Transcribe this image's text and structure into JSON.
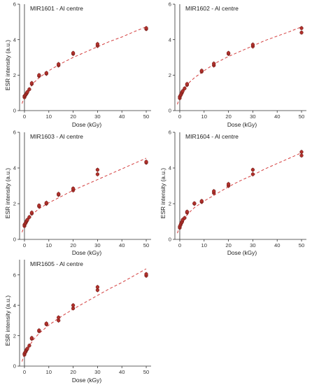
{
  "chart_data": [
    {
      "type": "scatter",
      "title": "MIR1601 - Al centre",
      "xlabel": "Dose (kGy)",
      "ylabel": "ESR intensity (a.u.)",
      "xlim": [
        -2,
        52
      ],
      "ylim": [
        0,
        6
      ],
      "xticks": [
        0,
        10,
        20,
        30,
        40,
        50
      ],
      "yticks": [
        0,
        2,
        4,
        6
      ],
      "grid": false,
      "series": [
        {
          "marker_color": "#b0302b",
          "x": [
            0,
            0,
            0.3,
            0.5,
            0.8,
            1,
            1.2,
            2,
            3,
            3,
            6,
            6,
            9,
            9,
            14,
            14,
            20,
            20,
            30,
            30,
            50,
            50
          ],
          "y": [
            0.75,
            0.82,
            0.85,
            0.9,
            0.95,
            1.0,
            1.05,
            1.2,
            1.5,
            1.55,
            1.95,
            2.0,
            2.08,
            2.12,
            2.55,
            2.62,
            3.2,
            3.25,
            3.65,
            3.75,
            4.6,
            4.65
          ]
        }
      ],
      "fit": {
        "color": "#d43f3f",
        "style": "dashed",
        "x": [
          -1,
          0,
          1,
          2,
          4,
          6,
          10,
          15,
          20,
          25,
          30,
          35,
          40,
          45,
          50
        ],
        "y": [
          0.4,
          0.78,
          1.05,
          1.25,
          1.6,
          1.85,
          2.25,
          2.65,
          3.0,
          3.3,
          3.6,
          3.9,
          4.15,
          4.45,
          4.72
        ]
      }
    },
    {
      "type": "scatter",
      "title": "MIR1602 - Al centre",
      "xlabel": "Dose (kGy)",
      "ylabel": "",
      "xlim": [
        -2,
        52
      ],
      "ylim": [
        0,
        6
      ],
      "xticks": [
        0,
        10,
        20,
        30,
        40,
        50
      ],
      "yticks": [
        0,
        2,
        4,
        6
      ],
      "grid": false,
      "series": [
        {
          "marker_color": "#b0302b",
          "x": [
            0,
            0,
            0.3,
            0.5,
            0.8,
            1,
            1.2,
            2,
            3,
            3,
            9,
            9,
            14,
            14,
            20,
            20,
            30,
            30,
            50,
            50
          ],
          "y": [
            0.7,
            0.78,
            0.85,
            0.9,
            0.98,
            1.05,
            1.1,
            1.25,
            1.45,
            1.5,
            2.2,
            2.25,
            2.55,
            2.65,
            3.2,
            3.25,
            3.62,
            3.72,
            4.4,
            4.65
          ]
        }
      ],
      "fit": {
        "color": "#d43f3f",
        "style": "dashed",
        "x": [
          -1,
          0,
          1,
          2,
          4,
          6,
          10,
          15,
          20,
          25,
          30,
          35,
          40,
          45,
          50
        ],
        "y": [
          0.35,
          0.75,
          1.05,
          1.25,
          1.6,
          1.85,
          2.25,
          2.7,
          3.05,
          3.35,
          3.65,
          3.95,
          4.2,
          4.45,
          4.72
        ]
      }
    },
    {
      "type": "scatter",
      "title": "MIR1603 - Al centre",
      "xlabel": "Dose (kGy)",
      "ylabel": "ESR intensity (a.u.)",
      "xlim": [
        -2,
        52
      ],
      "ylim": [
        0,
        6
      ],
      "xticks": [
        0,
        10,
        20,
        30,
        40,
        50
      ],
      "yticks": [
        0,
        2,
        4,
        6
      ],
      "grid": false,
      "series": [
        {
          "marker_color": "#b0302b",
          "x": [
            0,
            0,
            0.3,
            0.5,
            0.8,
            1,
            1.2,
            2,
            3,
            3,
            6,
            6,
            9,
            9,
            14,
            14,
            20,
            20,
            30,
            30,
            50,
            50
          ],
          "y": [
            0.75,
            0.82,
            0.88,
            0.92,
            1.0,
            1.05,
            1.1,
            1.25,
            1.45,
            1.5,
            1.85,
            1.9,
            2.0,
            2.05,
            2.5,
            2.55,
            2.75,
            2.85,
            3.65,
            3.9,
            4.3,
            4.35
          ]
        }
      ],
      "fit": {
        "color": "#d43f3f",
        "style": "dashed",
        "x": [
          -1,
          0,
          1,
          2,
          4,
          6,
          10,
          15,
          20,
          25,
          30,
          35,
          40,
          45,
          50
        ],
        "y": [
          0.4,
          0.78,
          1.0,
          1.2,
          1.5,
          1.72,
          2.05,
          2.4,
          2.75,
          3.05,
          3.35,
          3.65,
          3.95,
          4.25,
          4.55
        ]
      }
    },
    {
      "type": "scatter",
      "title": "MIR1604 - Al centre",
      "xlabel": "Dose (kGy)",
      "ylabel": "ESR intensity (a.u.)",
      "xlim": [
        -2,
        52
      ],
      "ylim": [
        0,
        6
      ],
      "xticks": [
        0,
        10,
        20,
        30,
        40,
        50
      ],
      "yticks": [
        0,
        2,
        4,
        6
      ],
      "grid": false,
      "series": [
        {
          "marker_color": "#b0302b",
          "x": [
            0,
            0,
            0.3,
            0.5,
            0.8,
            1,
            1.2,
            2,
            3,
            3,
            6,
            6,
            9,
            9,
            14,
            14,
            20,
            20,
            30,
            30,
            50,
            50
          ],
          "y": [
            0.65,
            0.72,
            0.8,
            0.88,
            0.95,
            1.0,
            1.1,
            1.2,
            1.5,
            1.55,
            2.0,
            2.02,
            2.1,
            2.15,
            2.6,
            2.7,
            3.0,
            3.1,
            3.65,
            3.9,
            4.7,
            4.9
          ]
        }
      ],
      "fit": {
        "color": "#d43f3f",
        "style": "dashed",
        "x": [
          -1,
          0,
          1,
          2,
          4,
          6,
          10,
          15,
          20,
          25,
          30,
          35,
          40,
          45,
          50
        ],
        "y": [
          0.35,
          0.72,
          1.0,
          1.2,
          1.52,
          1.78,
          2.15,
          2.55,
          2.95,
          3.3,
          3.6,
          3.95,
          4.25,
          4.55,
          4.85
        ]
      }
    },
    {
      "type": "scatter",
      "title": "MIR1605 - Al centre",
      "xlabel": "Dose (kGy)",
      "ylabel": "ESR intensity (a.u.)",
      "xlim": [
        -2,
        52
      ],
      "ylim": [
        0,
        7
      ],
      "xticks": [
        0,
        10,
        20,
        30,
        40,
        50
      ],
      "yticks": [
        0,
        2,
        4,
        6
      ],
      "grid": false,
      "series": [
        {
          "marker_color": "#b0302b",
          "x": [
            0,
            0,
            0.3,
            0.5,
            0.8,
            1,
            1.2,
            2,
            3,
            3,
            6,
            6,
            9,
            9,
            14,
            14,
            20,
            20,
            30,
            30,
            50,
            50
          ],
          "y": [
            0.75,
            0.82,
            0.9,
            0.95,
            1.05,
            1.1,
            1.15,
            1.35,
            1.8,
            1.85,
            2.3,
            2.35,
            2.75,
            2.8,
            3.0,
            3.2,
            3.8,
            4.0,
            5.0,
            5.2,
            5.95,
            6.05
          ]
        }
      ],
      "fit": {
        "color": "#d43f3f",
        "style": "dashed",
        "x": [
          -1,
          0,
          1,
          2,
          4,
          6,
          10,
          15,
          20,
          25,
          30,
          35,
          40,
          45,
          50
        ],
        "y": [
          0.3,
          0.8,
          1.1,
          1.35,
          1.8,
          2.15,
          2.7,
          3.25,
          3.75,
          4.2,
          4.65,
          5.1,
          5.5,
          5.95,
          6.4
        ]
      }
    }
  ]
}
